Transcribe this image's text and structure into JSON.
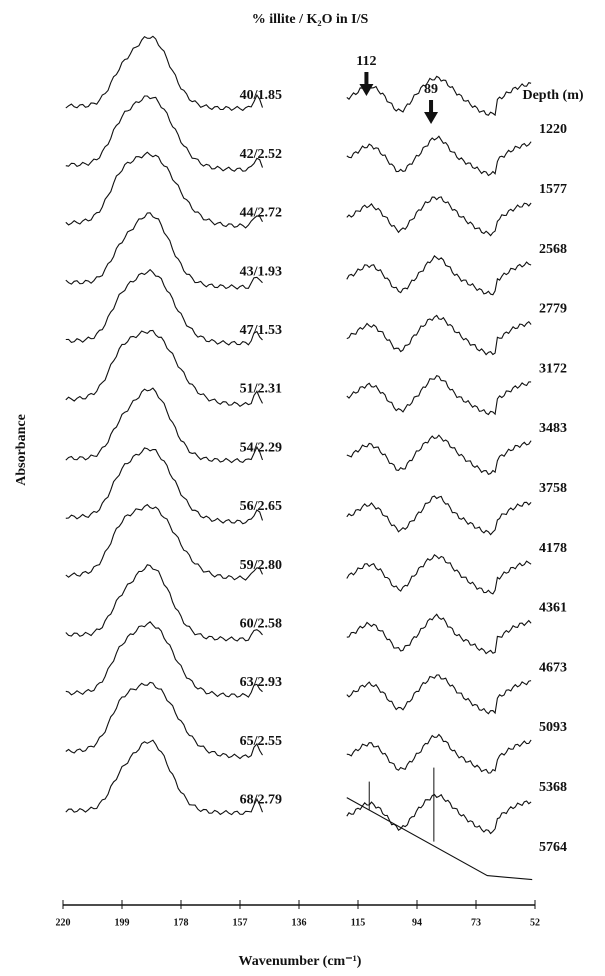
{
  "chart_data": {
    "type": "spectra",
    "title": "% illite / K₂O in I/S",
    "y_label": "Absorbance",
    "x_label": "Wavenumber (cm⁻¹)",
    "depth_header": "Depth (m)",
    "xlim": [
      220,
      52
    ],
    "xticks": [
      220,
      199,
      178,
      157,
      136,
      115,
      94,
      73,
      52
    ],
    "annotations": [
      112,
      89
    ],
    "sample_labels": [
      "40/1.85",
      "42/2.52",
      "44/2.72",
      "43/1.93",
      "47/1.53",
      "51/2.31",
      "54/2.29",
      "56/2.65",
      "59/2.80",
      "60/2.58",
      "63/2.93",
      "65/2.55",
      "68/2.79"
    ],
    "depths": [
      1220,
      1577,
      2568,
      2779,
      3172,
      3483,
      3758,
      4178,
      4361,
      4673,
      5093,
      5368,
      5764
    ]
  }
}
